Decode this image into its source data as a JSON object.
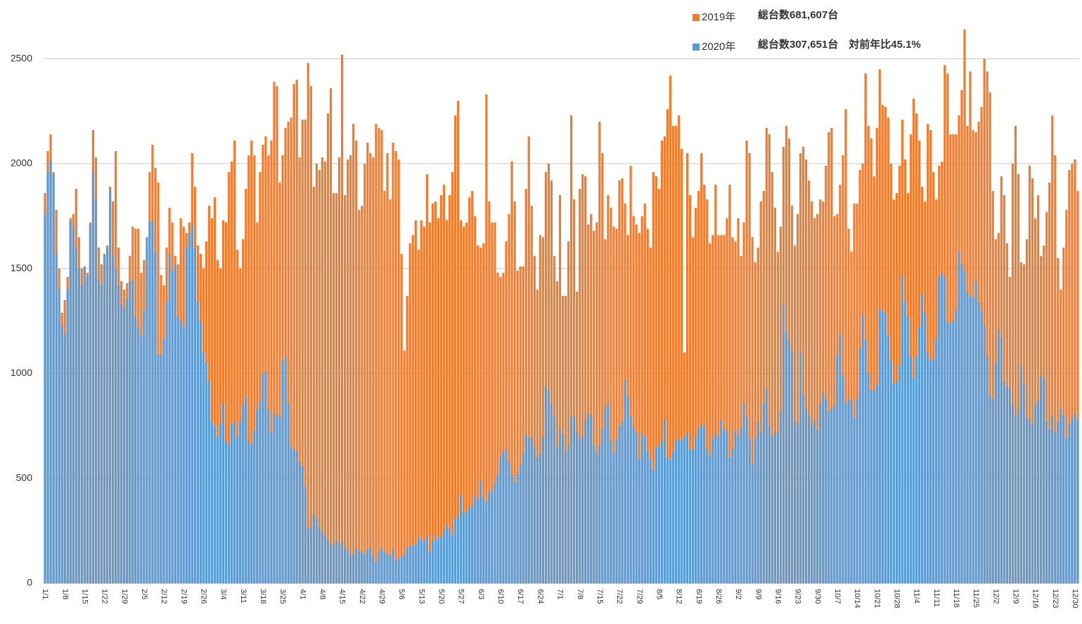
{
  "chart_data": {
    "type": "bar",
    "overlap": true,
    "annotations": [
      "総台数681,607台",
      "総台数307,651台　対前年比45.1%"
    ],
    "categories": [
      "1/1",
      null,
      null,
      null,
      null,
      null,
      null,
      "1/8",
      null,
      null,
      null,
      null,
      null,
      null,
      "1/15",
      null,
      null,
      null,
      null,
      null,
      null,
      "1/22",
      null,
      null,
      null,
      null,
      null,
      null,
      "1/29",
      null,
      null,
      null,
      null,
      null,
      null,
      "2/5",
      null,
      null,
      null,
      null,
      null,
      null,
      "2/12",
      null,
      null,
      null,
      null,
      null,
      null,
      "2/19",
      null,
      null,
      null,
      null,
      null,
      null,
      "2/26",
      null,
      null,
      null,
      null,
      null,
      null,
      "3/4",
      null,
      null,
      null,
      null,
      null,
      null,
      "3/11",
      null,
      null,
      null,
      null,
      null,
      null,
      "3/18",
      null,
      null,
      null,
      null,
      null,
      null,
      "3/25",
      null,
      null,
      null,
      null,
      null,
      null,
      "4/1",
      null,
      null,
      null,
      null,
      null,
      null,
      "4/8",
      null,
      null,
      null,
      null,
      null,
      null,
      "4/15",
      null,
      null,
      null,
      null,
      null,
      null,
      "4/22",
      null,
      null,
      null,
      null,
      null,
      null,
      "4/29",
      null,
      null,
      null,
      null,
      null,
      null,
      "5/6",
      null,
      null,
      null,
      null,
      null,
      null,
      "5/13",
      null,
      null,
      null,
      null,
      null,
      null,
      "5/20",
      null,
      null,
      null,
      null,
      null,
      null,
      "5/27",
      null,
      null,
      null,
      null,
      null,
      null,
      "6/3",
      null,
      null,
      null,
      null,
      null,
      null,
      "6/10",
      null,
      null,
      null,
      null,
      null,
      null,
      "6/17",
      null,
      null,
      null,
      null,
      null,
      null,
      "6/24",
      null,
      null,
      null,
      null,
      null,
      null,
      "7/1",
      null,
      null,
      null,
      null,
      null,
      null,
      "7/8",
      null,
      null,
      null,
      null,
      null,
      null,
      "7/15",
      null,
      null,
      null,
      null,
      null,
      null,
      "7/22",
      null,
      null,
      null,
      null,
      null,
      null,
      "7/29",
      null,
      null,
      null,
      null,
      null,
      null,
      "8/5",
      null,
      null,
      null,
      null,
      null,
      null,
      "8/12",
      null,
      null,
      null,
      null,
      null,
      null,
      "8/19",
      null,
      null,
      null,
      null,
      null,
      null,
      "8/26",
      null,
      null,
      null,
      null,
      null,
      null,
      "9/2",
      null,
      null,
      null,
      null,
      null,
      null,
      "9/9",
      null,
      null,
      null,
      null,
      null,
      null,
      "9/16",
      null,
      null,
      null,
      null,
      null,
      null,
      "9/23",
      null,
      null,
      null,
      null,
      null,
      null,
      "9/30",
      null,
      null,
      null,
      null,
      null,
      null,
      "10/7",
      null,
      null,
      null,
      null,
      null,
      null,
      "10/14",
      null,
      null,
      null,
      null,
      null,
      null,
      "10/21",
      null,
      null,
      null,
      null,
      null,
      null,
      "10/28",
      null,
      null,
      null,
      null,
      null,
      null,
      "11/4",
      null,
      null,
      null,
      null,
      null,
      null,
      "11/11",
      null,
      null,
      null,
      null,
      null,
      null,
      "11/18",
      null,
      null,
      null,
      null,
      null,
      null,
      "11/25",
      null,
      null,
      null,
      null,
      null,
      null,
      "12/2",
      null,
      null,
      null,
      null,
      null,
      null,
      "12/9",
      null,
      null,
      null,
      null,
      null,
      null,
      "12/16",
      null,
      null,
      null,
      null,
      null,
      null,
      "12/23",
      null,
      null,
      null,
      null,
      null,
      null,
      "12/30",
      null
    ],
    "series": [
      {
        "name": "2019年",
        "color": "#ed7d31",
        "values": [
          1860,
          2060,
          2140,
          1960,
          1780,
          1500,
          1290,
          1350,
          1460,
          1740,
          1760,
          1880,
          1650,
          1500,
          1500,
          1480,
          1720,
          2160,
          2030,
          1600,
          1520,
          1560,
          1610,
          1890,
          1820,
          2060,
          1600,
          1440,
          1400,
          1430,
          1560,
          1700,
          1690,
          1690,
          1480,
          1540,
          1570,
          1960,
          2090,
          1980,
          1910,
          1470,
          1420,
          1600,
          1790,
          1720,
          1560,
          1520,
          1740,
          1700,
          1670,
          1720,
          2050,
          1890,
          1610,
          1570,
          1500,
          1630,
          1800,
          1740,
          1840,
          1540,
          1500,
          1730,
          1720,
          1960,
          2010,
          2110,
          1590,
          1500,
          1640,
          1880,
          2040,
          2110,
          2040,
          1720,
          1960,
          2090,
          2130,
          2040,
          2110,
          2390,
          2370,
          1910,
          2040,
          2170,
          2200,
          2220,
          2380,
          2400,
          2030,
          2210,
          2210,
          2480,
          2370,
          1890,
          2000,
          1970,
          2030,
          2010,
          2240,
          2360,
          1860,
          1860,
          2030,
          2520,
          1850,
          2020,
          2040,
          2190,
          2110,
          1780,
          1800,
          2000,
          2100,
          2050,
          2030,
          2190,
          2170,
          2160,
          1870,
          2050,
          1830,
          2100,
          2060,
          2020,
          1570,
          1110,
          1370,
          1620,
          1660,
          1730,
          1590,
          1730,
          1700,
          1950,
          1720,
          1810,
          1820,
          1740,
          1850,
          1900,
          1730,
          1850,
          1960,
          2230,
          2300,
          1730,
          1700,
          1720,
          1840,
          1870,
          1750,
          1610,
          1600,
          1620,
          2330,
          1820,
          1720,
          1720,
          1480,
          1460,
          1480,
          1630,
          1760,
          2010,
          1820,
          1490,
          1510,
          1510,
          1880,
          2130,
          1800,
          1560,
          1400,
          1660,
          1650,
          1960,
          2000,
          1920,
          1560,
          1440,
          1850,
          1370,
          1370,
          1630,
          2230,
          1830,
          1390,
          1880,
          1950,
          1940,
          1710,
          1760,
          1680,
          1720,
          2200,
          2050,
          1640,
          1850,
          1790,
          1700,
          1690,
          1920,
          1930,
          1810,
          1660,
          1990,
          1750,
          1710,
          1670,
          1750,
          1810,
          1690,
          1600,
          1960,
          1940,
          1880,
          2110,
          2130,
          2260,
          2420,
          2180,
          2180,
          2230,
          2070,
          1100,
          2050,
          1850,
          1650,
          1790,
          1870,
          2050,
          1900,
          1830,
          1620,
          1660,
          1900,
          1660,
          1660,
          1660,
          1740,
          1900,
          1650,
          1630,
          1740,
          1560,
          1720,
          2110,
          2050,
          1650,
          1530,
          1600,
          1820,
          1870,
          2170,
          2140,
          1960,
          1790,
          1580,
          1700,
          2080,
          2180,
          2120,
          1800,
          1610,
          1760,
          2050,
          2080,
          2020,
          1920,
          1820,
          1740,
          1760,
          1830,
          1820,
          1990,
          2150,
          2170,
          1750,
          1760,
          1900,
          2040,
          2260,
          1690,
          1580,
          1810,
          1810,
          1970,
          2000,
          2430,
          2180,
          2120,
          1940,
          2170,
          2450,
          2280,
          2270,
          2220,
          2000,
          1830,
          1860,
          1990,
          2210,
          2020,
          1860,
          2140,
          2310,
          2240,
          2110,
          1890,
          1820,
          2190,
          2160,
          1960,
          1830,
          1990,
          2010,
          2470,
          2430,
          2140,
          2140,
          2140,
          2230,
          2350,
          2640,
          2180,
          2440,
          2160,
          2150,
          2200,
          2270,
          2500,
          2440,
          2340,
          1870,
          1640,
          1670,
          1940,
          1850,
          1620,
          1460,
          2000,
          2180,
          1950,
          1530,
          1520,
          1640,
          1990,
          1930,
          1740,
          1850,
          1560,
          1610,
          1770,
          1910,
          2230,
          2040,
          1550,
          1400,
          1600,
          1780,
          1970,
          2000,
          2020,
          1870
        ]
      },
      {
        "name": "2020年",
        "color": "#5b9bd5",
        "values": [
          1760,
          1960,
          2020,
          1950,
          1570,
          1400,
          1230,
          1190,
          1400,
          1730,
          1700,
          1600,
          1500,
          1420,
          1510,
          1460,
          1710,
          1960,
          1830,
          1450,
          1420,
          1570,
          1600,
          1880,
          1560,
          1500,
          1420,
          1330,
          1310,
          1360,
          1440,
          1440,
          1270,
          1220,
          1180,
          1300,
          1650,
          1720,
          1730,
          1580,
          1090,
          1090,
          1170,
          1340,
          1570,
          1490,
          1520,
          1270,
          1250,
          1220,
          1600,
          1670,
          1710,
          1600,
          1340,
          1250,
          1100,
          1050,
          960,
          770,
          750,
          700,
          760,
          860,
          680,
          660,
          760,
          770,
          700,
          770,
          850,
          890,
          680,
          660,
          730,
          830,
          870,
          1000,
          1010,
          830,
          720,
          810,
          800,
          790,
          1060,
          1080,
          860,
          650,
          640,
          630,
          580,
          560,
          460,
          260,
          270,
          330,
          310,
          270,
          250,
          230,
          210,
          180,
          190,
          200,
          190,
          200,
          170,
          160,
          140,
          140,
          170,
          150,
          150,
          140,
          160,
          170,
          130,
          100,
          150,
          170,
          150,
          140,
          130,
          160,
          110,
          120,
          130,
          140,
          170,
          180,
          180,
          190,
          220,
          210,
          200,
          230,
          150,
          200,
          230,
          210,
          220,
          250,
          280,
          260,
          230,
          310,
          320,
          420,
          340,
          340,
          360,
          370,
          420,
          400,
          490,
          410,
          390,
          440,
          440,
          480,
          520,
          600,
          630,
          640,
          580,
          520,
          480,
          520,
          560,
          620,
          710,
          690,
          700,
          650,
          600,
          620,
          700,
          940,
          920,
          860,
          800,
          650,
          740,
          710,
          630,
          660,
          800,
          790,
          720,
          690,
          700,
          780,
          810,
          800,
          660,
          620,
          660,
          740,
          840,
          860,
          680,
          620,
          690,
          750,
          770,
          970,
          890,
          800,
          740,
          720,
          590,
          720,
          700,
          630,
          590,
          540,
          650,
          650,
          680,
          780,
          600,
          590,
          630,
          680,
          690,
          680,
          700,
          720,
          640,
          640,
          700,
          740,
          760,
          750,
          640,
          610,
          690,
          720,
          700,
          780,
          730,
          730,
          600,
          640,
          730,
          700,
          740,
          860,
          790,
          690,
          570,
          690,
          770,
          720,
          860,
          930,
          750,
          700,
          720,
          720,
          820,
          1330,
          1200,
          1160,
          1110,
          770,
          760,
          1100,
          900,
          830,
          800,
          750,
          780,
          730,
          860,
          910,
          880,
          820,
          830,
          850,
          1090,
          1190,
          990,
          860,
          880,
          870,
          790,
          880,
          1120,
          1280,
          1160,
          1000,
          920,
          920,
          950,
          1310,
          1300,
          1290,
          1180,
          1060,
          950,
          960,
          1040,
          1470,
          1340,
          1270,
          1080,
          980,
          1080,
          1220,
          1380,
          1290,
          1100,
          1060,
          1070,
          1170,
          1460,
          1480,
          1460,
          1250,
          1240,
          1250,
          1300,
          1580,
          1520,
          1490,
          1390,
          1370,
          1360,
          1440,
          1340,
          1300,
          1230,
          1080,
          900,
          880,
          1050,
          1210,
          1170,
          960,
          940,
          930,
          850,
          800,
          830,
          1040,
          950,
          790,
          780,
          760,
          850,
          870,
          990,
          980,
          770,
          730,
          800,
          720,
          770,
          830,
          800,
          690,
          760,
          790,
          810,
          780
        ]
      }
    ],
    "ylim": [
      0,
      2750
    ],
    "yticks": [
      0,
      500,
      1000,
      1500,
      2000,
      2500
    ],
    "grid": true
  }
}
